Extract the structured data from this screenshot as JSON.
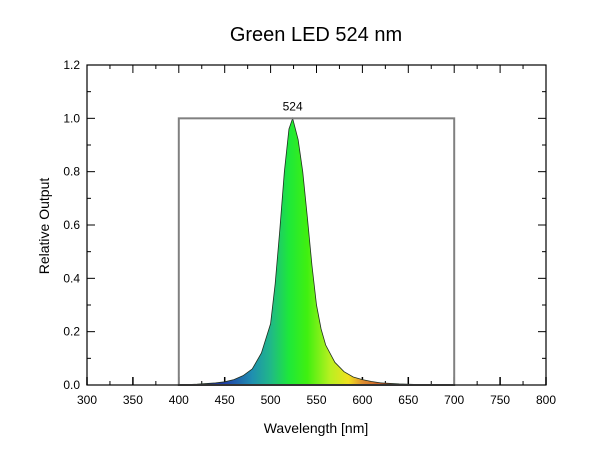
{
  "chart_data": {
    "type": "area",
    "title": "Green LED 524 nm",
    "xlabel": "Wavelength [nm]",
    "ylabel": "Relative Output",
    "xlim": [
      300,
      800
    ],
    "ylim": [
      0,
      1.2
    ],
    "xticks": [
      300,
      350,
      400,
      450,
      500,
      550,
      600,
      650,
      700,
      750,
      800
    ],
    "yticks": [
      "0.0",
      "0.2",
      "0.4",
      "0.6",
      "0.8",
      "1.0",
      "1.2"
    ],
    "grid": false,
    "peak_label": "524",
    "peak": {
      "x": 524,
      "y": 1.0
    },
    "reference_box": {
      "x": [
        400,
        700
      ],
      "y": [
        0,
        1.0
      ],
      "color": "#808080"
    },
    "series": [
      {
        "name": "Green LED",
        "x": [
          400,
          420,
          440,
          450,
          460,
          470,
          480,
          490,
          500,
          505,
          510,
          515,
          520,
          524,
          530,
          535,
          540,
          545,
          550,
          555,
          560,
          570,
          580,
          590,
          600,
          610,
          620,
          640,
          660,
          700
        ],
        "y": [
          0,
          0.003,
          0.008,
          0.012,
          0.02,
          0.035,
          0.06,
          0.12,
          0.23,
          0.38,
          0.58,
          0.8,
          0.96,
          1.0,
          0.92,
          0.8,
          0.63,
          0.45,
          0.3,
          0.21,
          0.15,
          0.085,
          0.05,
          0.03,
          0.02,
          0.013,
          0.008,
          0.004,
          0.002,
          0
        ]
      }
    ],
    "spectrum_colors": [
      {
        "nm": 400,
        "color": "#1a0a5a"
      },
      {
        "nm": 450,
        "color": "#1f3fa8"
      },
      {
        "nm": 480,
        "color": "#1f8fb0"
      },
      {
        "nm": 500,
        "color": "#20b888"
      },
      {
        "nm": 520,
        "color": "#1ee83a"
      },
      {
        "nm": 540,
        "color": "#40f010"
      },
      {
        "nm": 565,
        "color": "#b8f020"
      },
      {
        "nm": 585,
        "color": "#f0e020"
      },
      {
        "nm": 600,
        "color": "#e09030"
      },
      {
        "nm": 630,
        "color": "#c04020"
      },
      {
        "nm": 700,
        "color": "#600000"
      }
    ]
  }
}
